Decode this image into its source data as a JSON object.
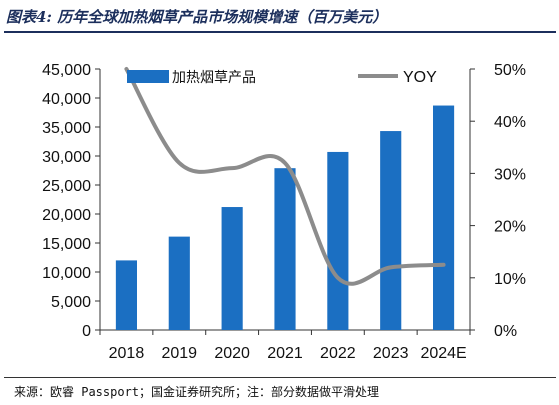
{
  "title": "图表4: 历年全球加热烟草产品市场规模增速（百万美元）",
  "source": "来源：欧睿 Passport；国金证券研究所；注：部分数据做平滑处理",
  "colors": {
    "bar": "#1b6fc2",
    "line": "#8c8c8c",
    "title": "#1c2f5c"
  },
  "chart_data": {
    "type": "bar",
    "categories": [
      "2018",
      "2019",
      "2020",
      "2021",
      "2022",
      "2023",
      "2024E"
    ],
    "series": [
      {
        "name": "加热烟草产品",
        "type": "bar",
        "axis": "left",
        "values": [
          12000,
          16100,
          21200,
          27900,
          30700,
          34300,
          38700
        ]
      },
      {
        "name": "YOY",
        "type": "line",
        "axis": "right",
        "values": [
          0.5,
          0.32,
          0.31,
          0.32,
          0.1,
          0.12,
          0.125
        ]
      }
    ],
    "left_axis": {
      "min": 0,
      "max": 45000,
      "ticks": [
        "0",
        "5,000",
        "10,000",
        "15,000",
        "20,000",
        "25,000",
        "30,000",
        "35,000",
        "40,000",
        "45,000"
      ]
    },
    "right_axis": {
      "min": 0,
      "max": 0.5,
      "ticks": [
        "0%",
        "10%",
        "20%",
        "30%",
        "40%",
        "50%"
      ]
    },
    "legend_position": "top",
    "grid": false
  }
}
